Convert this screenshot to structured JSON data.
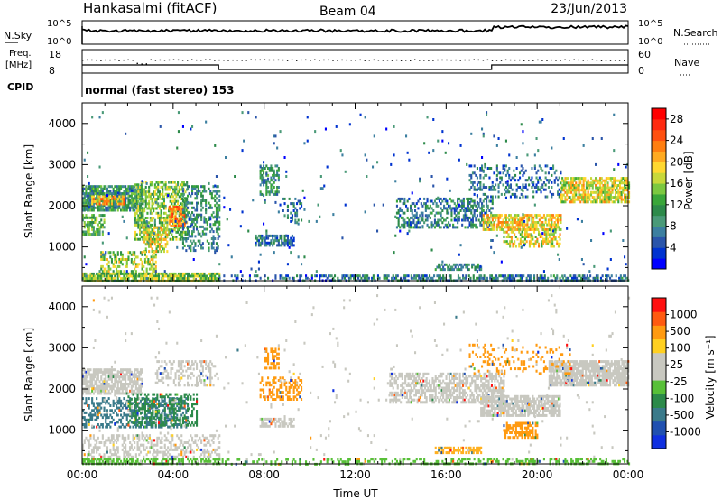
{
  "header": {
    "station": "Hankasalmi (fitACF)",
    "beam": "Beam 04",
    "date": "23/Jun/2013"
  },
  "summary_panels": {
    "nsky_label": "N.Sky",
    "nsky_top_tick": "10^5",
    "nsky_bottom_tick": "10^0",
    "nsearch_label": "N.Search",
    "nsearch_top_tick": "10^5",
    "nsearch_bottom_tick": "10^0",
    "freq_label_line1": "Freq.",
    "freq_label_line2": "[MHz]",
    "freq_top_tick": "18",
    "freq_bottom_tick": "8",
    "nave_label": "Nave",
    "nave_top_tick": "60",
    "nave_bottom_tick": "0",
    "cpid_label": "CPID",
    "cpid_text": "normal (fast stereo) 153",
    "cpid_change_hours": [
      6.0,
      18.0
    ]
  },
  "chart_data": [
    {
      "type": "heatmap",
      "panel": "power",
      "ylabel": "Slant Range [km]",
      "xlabel": "",
      "x_range_hours": [
        0,
        24
      ],
      "ylim": [
        180,
        4500
      ],
      "y_ticks": [
        "1000",
        "2000",
        "3000",
        "4000"
      ],
      "colorbar": {
        "label": "Power [dB]",
        "ticks": [
          "4",
          "8",
          "12",
          "16",
          "20",
          "24",
          "28"
        ],
        "range": [
          0,
          30
        ],
        "colors": [
          "#0000ff",
          "#0033d0",
          "#2a55aa",
          "#3c7fa0",
          "#4a9a78",
          "#2d8a4a",
          "#3aa63a",
          "#7cc840",
          "#c8d83a",
          "#ffd830",
          "#ffaa20",
          "#ff7e10",
          "#ff5010",
          "#ff2a10",
          "#ff0000"
        ]
      },
      "echo_regions": [
        {
          "t": [
            0.0,
            2.6
          ],
          "r": [
            1900,
            2500
          ],
          "value": 10,
          "density": 0.8
        },
        {
          "t": [
            0.4,
            1.8
          ],
          "r": [
            2050,
            2250
          ],
          "value": 21,
          "density": 0.7
        },
        {
          "t": [
            0.0,
            1.0
          ],
          "r": [
            1300,
            1800
          ],
          "value": 13,
          "density": 0.55
        },
        {
          "t": [
            2.3,
            4.6
          ],
          "r": [
            1200,
            2600
          ],
          "value": 14,
          "density": 0.55
        },
        {
          "t": [
            3.8,
            4.5
          ],
          "r": [
            1500,
            2000
          ],
          "value": 23,
          "density": 0.6
        },
        {
          "t": [
            2.7,
            3.7
          ],
          "r": [
            900,
            1500
          ],
          "value": 18,
          "density": 0.55
        },
        {
          "t": [
            4.4,
            6.0
          ],
          "r": [
            900,
            2500
          ],
          "value": 9,
          "density": 0.4
        },
        {
          "t": [
            0.8,
            3.2
          ],
          "r": [
            300,
            900
          ],
          "value": 16,
          "density": 0.45
        },
        {
          "t": [
            0.0,
            6.0
          ],
          "r": [
            180,
            380
          ],
          "value": 15,
          "density": 0.8
        },
        {
          "t": [
            6.0,
            11.5
          ],
          "r": [
            180,
            330
          ],
          "value": 6,
          "density": 0.3
        },
        {
          "t": [
            11.5,
            24.0
          ],
          "r": [
            180,
            330
          ],
          "value": 8,
          "density": 0.55
        },
        {
          "t": [
            7.6,
            9.3
          ],
          "r": [
            1050,
            1300
          ],
          "value": 7,
          "density": 0.65
        },
        {
          "t": [
            7.8,
            8.6
          ],
          "r": [
            2300,
            3000
          ],
          "value": 10,
          "density": 0.5
        },
        {
          "t": [
            8.8,
            9.6
          ],
          "r": [
            1600,
            2200
          ],
          "value": 7,
          "density": 0.35
        },
        {
          "t": [
            13.8,
            18.0
          ],
          "r": [
            1500,
            2200
          ],
          "value": 8,
          "density": 0.45
        },
        {
          "t": [
            17.6,
            21.0
          ],
          "r": [
            1400,
            1800
          ],
          "value": 19,
          "density": 0.7
        },
        {
          "t": [
            21.0,
            24.0
          ],
          "r": [
            2100,
            2700
          ],
          "value": 18,
          "density": 0.7
        },
        {
          "t": [
            18.5,
            21.0
          ],
          "r": [
            1000,
            1450
          ],
          "value": 18,
          "density": 0.5
        },
        {
          "t": [
            17.0,
            21.0
          ],
          "r": [
            2200,
            3000
          ],
          "value": 7,
          "density": 0.25
        },
        {
          "t": [
            15.5,
            17.5
          ],
          "r": [
            450,
            600
          ],
          "value": 9,
          "density": 0.6
        },
        {
          "t": [
            0.0,
            24.0
          ],
          "r": [
            180,
            4300
          ],
          "value": 6,
          "density": 0.012
        }
      ]
    },
    {
      "type": "heatmap",
      "panel": "velocity",
      "ylabel": "Slant Range [km]",
      "xlabel": "Time UT",
      "x_range_hours": [
        0,
        24
      ],
      "x_ticks": [
        "00:00",
        "04:00",
        "08:00",
        "12:00",
        "16:00",
        "20:00",
        "00:00"
      ],
      "ylim": [
        180,
        4500
      ],
      "y_ticks": [
        "1000",
        "2000",
        "3000",
        "4000"
      ],
      "colorbar": {
        "label": "Velocity [m s⁻¹]",
        "ticks": [
          "1000",
          "500",
          "100",
          "25",
          "-25",
          "-100",
          "-500",
          "-1000"
        ],
        "colors": [
          "#1030e0",
          "#2050b0",
          "#3a7a8a",
          "#2c8a4a",
          "#58c038",
          "#c8c8c0",
          "#c8c8c0",
          "#ffd020",
          "#ff9a10",
          "#ff5a10",
          "#ff1010"
        ]
      },
      "echo_regions": [
        {
          "t": [
            0.0,
            2.6
          ],
          "r": [
            1900,
            2500
          ],
          "color": "#c8c8c0",
          "density": 0.75
        },
        {
          "t": [
            0.0,
            4.6
          ],
          "r": [
            1100,
            1800
          ],
          "color": "#3a7a8a",
          "density": 0.45
        },
        {
          "t": [
            2.0,
            5.0
          ],
          "r": [
            1100,
            1900
          ],
          "color": "#2c8a4a",
          "density": 0.4
        },
        {
          "t": [
            0.0,
            6.0
          ],
          "r": [
            180,
            330
          ],
          "color": "#58c038",
          "density": 0.55
        },
        {
          "t": [
            0.0,
            6.0
          ],
          "r": [
            330,
            900
          ],
          "color": "#c8c8c0",
          "density": 0.35
        },
        {
          "t": [
            3.2,
            5.8
          ],
          "r": [
            2100,
            2700
          ],
          "color": "#c8c8c0",
          "density": 0.35
        },
        {
          "t": [
            6.0,
            12.0
          ],
          "r": [
            180,
            320
          ],
          "color": "#58c038",
          "density": 0.25
        },
        {
          "t": [
            7.8,
            9.3
          ],
          "r": [
            1100,
            1300
          ],
          "color": "#c8c8c0",
          "density": 0.6
        },
        {
          "t": [
            7.8,
            9.6
          ],
          "r": [
            1750,
            2300
          ],
          "color": "#ff9a10",
          "density": 0.45
        },
        {
          "t": [
            8.0,
            8.6
          ],
          "r": [
            2500,
            3000
          ],
          "color": "#ff9a10",
          "density": 0.45
        },
        {
          "t": [
            13.5,
            18.5
          ],
          "r": [
            1700,
            2400
          ],
          "color": "#c8c8c0",
          "density": 0.55
        },
        {
          "t": [
            17.5,
            21.0
          ],
          "r": [
            1350,
            1850
          ],
          "color": "#c8c8c0",
          "density": 0.75
        },
        {
          "t": [
            20.5,
            24.0
          ],
          "r": [
            2100,
            2700
          ],
          "color": "#c8c8c0",
          "density": 0.8
        },
        {
          "t": [
            18.5,
            20.0
          ],
          "r": [
            850,
            1200
          ],
          "color": "#ff9a10",
          "density": 0.6
        },
        {
          "t": [
            15.5,
            17.5
          ],
          "r": [
            450,
            600
          ],
          "color": "#ffb020",
          "density": 0.65
        },
        {
          "t": [
            17.0,
            21.5
          ],
          "r": [
            2400,
            3100
          ],
          "color": "#ff9a10",
          "density": 0.18
        },
        {
          "t": [
            12.0,
            24.0
          ],
          "r": [
            180,
            330
          ],
          "color": "#58c038",
          "density": 0.4
        },
        {
          "t": [
            0.0,
            24.0
          ],
          "r": [
            180,
            4300
          ],
          "color": "#c8c8c0",
          "density": 0.01
        }
      ]
    }
  ]
}
